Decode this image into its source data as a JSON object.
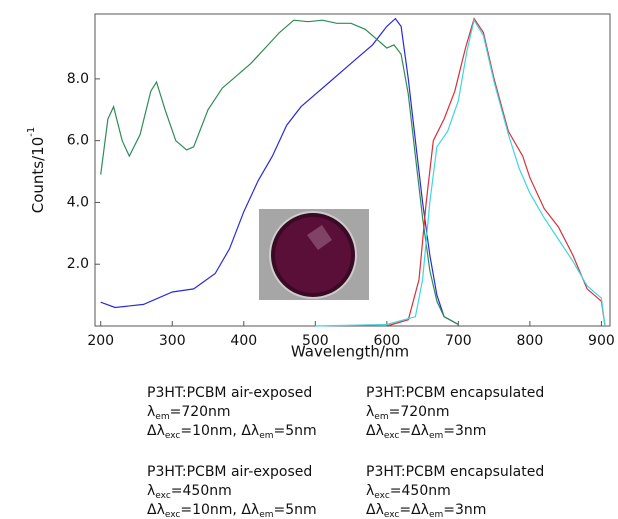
{
  "chart_data": {
    "type": "line",
    "xlabel": "Wavelength/nm",
    "ylabel": {
      "text": "Counts/10",
      "superscript": "-1"
    },
    "xlim": [
      192,
      912
    ],
    "ylim": [
      0,
      10.1
    ],
    "xticks": [
      200,
      300,
      400,
      500,
      600,
      700,
      800,
      900
    ],
    "yticks": [
      {
        "value": 2,
        "label": "2.0"
      },
      {
        "value": 4,
        "label": "4.0"
      },
      {
        "value": 6,
        "label": "6.0"
      },
      {
        "value": 8,
        "label": "8.0"
      }
    ],
    "series": [
      {
        "name": "P3HT:PCBM air-exposed",
        "color": "#2b2bd4",
        "notes": [
          [
            {
              "text": "λ"
            },
            {
              "sub": "em"
            },
            {
              "text": "=720nm"
            }
          ],
          [
            {
              "text": " Δλ"
            },
            {
              "sub": "exc"
            },
            {
              "text": "=10nm, Δλ"
            },
            {
              "sub": "em"
            },
            {
              "text": "=5nm"
            }
          ]
        ],
        "x": [
          200,
          220,
          260,
          300,
          330,
          360,
          380,
          400,
          420,
          440,
          460,
          480,
          500,
          520,
          540,
          560,
          580,
          600,
          612,
          620,
          630,
          640,
          650,
          660,
          670,
          680,
          700
        ],
        "values": [
          0.77,
          0.6,
          0.7,
          1.1,
          1.2,
          1.7,
          2.5,
          3.7,
          4.7,
          5.5,
          6.5,
          7.1,
          7.5,
          7.9,
          8.3,
          8.7,
          9.1,
          9.7,
          9.95,
          9.7,
          8.0,
          6.0,
          4.0,
          2.3,
          1.0,
          0.3,
          0.05
        ]
      },
      {
        "name": "P3HT:PCBM encapsulated",
        "color": "#2e8b57",
        "notes": [
          [
            {
              "text": "λ"
            },
            {
              "sub": "em"
            },
            {
              "text": "=720nm"
            }
          ],
          [
            {
              "text": " Δλ"
            },
            {
              "sub": "exc"
            },
            {
              "text": "=Δλ"
            },
            {
              "sub": "em"
            },
            {
              "text": "=3nm"
            }
          ]
        ],
        "x": [
          200,
          210,
          218,
          230,
          240,
          255,
          270,
          278,
          290,
          305,
          320,
          330,
          350,
          370,
          390,
          410,
          430,
          450,
          470,
          490,
          510,
          530,
          550,
          570,
          590,
          600,
          610,
          620,
          630,
          640,
          650,
          660,
          670,
          680,
          700
        ],
        "values": [
          4.9,
          6.7,
          7.1,
          6.0,
          5.5,
          6.2,
          7.6,
          7.9,
          7.0,
          6.0,
          5.7,
          5.8,
          7.0,
          7.7,
          8.1,
          8.5,
          9.0,
          9.5,
          9.9,
          9.85,
          9.9,
          9.8,
          9.8,
          9.6,
          9.2,
          9.0,
          9.1,
          8.8,
          7.5,
          5.5,
          3.5,
          1.8,
          0.8,
          0.3,
          0.05
        ]
      },
      {
        "name": "P3HT:PCBM air-exposed",
        "color": "#d6303a",
        "notes": [
          [
            {
              "text": "λ"
            },
            {
              "sub": "exc"
            },
            {
              "text": "=450nm"
            }
          ],
          [
            {
              "text": "Δλ"
            },
            {
              "sub": "exc"
            },
            {
              "text": "=10nm, Δλ"
            },
            {
              "sub": "em"
            },
            {
              "text": "=5nm"
            }
          ]
        ],
        "x": [
          600,
          630,
          645,
          655,
          665,
          680,
          695,
          710,
          722,
          735,
          750,
          770,
          790,
          800,
          820,
          840,
          860,
          880,
          890,
          900,
          905
        ],
        "values": [
          0,
          0.2,
          1.5,
          4.0,
          6.0,
          6.7,
          7.6,
          9.0,
          9.95,
          9.5,
          8.0,
          6.3,
          5.5,
          4.8,
          3.8,
          3.2,
          2.3,
          1.2,
          1.0,
          0.8,
          0
        ]
      },
      {
        "name": "P3HT:PCBM encapsulated",
        "color": "#3fd6e0",
        "notes": [
          [
            {
              "text": "λ"
            },
            {
              "sub": "exc"
            },
            {
              "text": "=450nm"
            }
          ],
          [
            {
              "text": "Δλ"
            },
            {
              "sub": "exc"
            },
            {
              "text": "=Δλ"
            },
            {
              "sub": "em"
            },
            {
              "text": "=3nm"
            }
          ]
        ],
        "x": [
          500,
          600,
          640,
          650,
          660,
          670,
          685,
          700,
          712,
          722,
          735,
          750,
          770,
          785,
          800,
          820,
          840,
          860,
          880,
          900,
          905
        ],
        "values": [
          0,
          0.05,
          0.3,
          1.5,
          4.0,
          5.8,
          6.3,
          7.3,
          8.9,
          9.9,
          9.4,
          7.9,
          6.2,
          5.1,
          4.3,
          3.5,
          2.8,
          2.1,
          1.3,
          0.9,
          0
        ]
      }
    ]
  }
}
